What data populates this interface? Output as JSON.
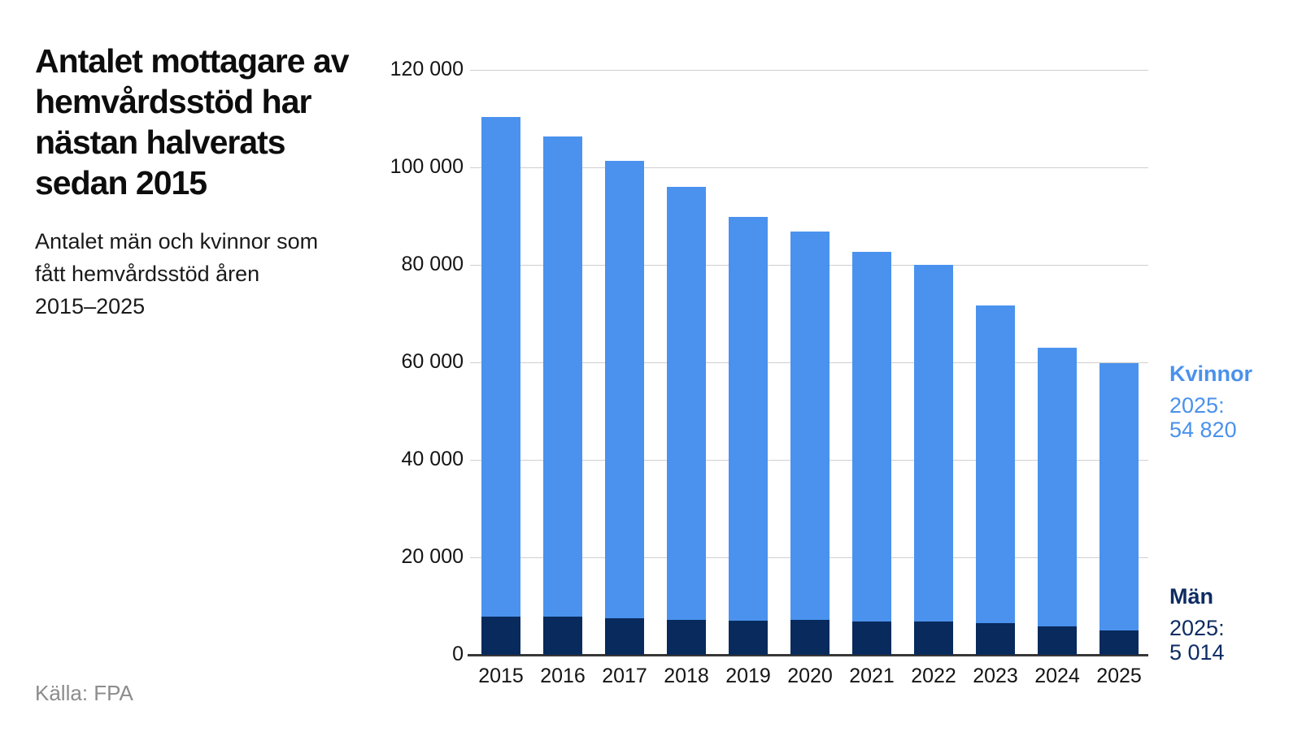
{
  "chart_data": {
    "type": "bar",
    "stacked": true,
    "title": "Antalet mottagare av\nhemvårdsstöd har\nnästan halverats\nsedan 2015",
    "subtitle": "Antalet män och kvinnor som\nfått hemvårdsstöd åren\n2015–2025",
    "source": "Källa: FPA",
    "categories": [
      "2015",
      "2016",
      "2017",
      "2018",
      "2019",
      "2020",
      "2021",
      "2022",
      "2023",
      "2024",
      "2025"
    ],
    "series": [
      {
        "name": "Män",
        "key": "man",
        "color": "#082a5c",
        "values": [
          7900,
          7900,
          7500,
          7200,
          7000,
          7100,
          6900,
          6900,
          6500,
          5800,
          5014
        ]
      },
      {
        "name": "Kvinnor",
        "key": "kvinnor",
        "color": "#4a92ee",
        "values": [
          102400,
          98500,
          93800,
          88800,
          82800,
          79700,
          75800,
          73100,
          65200,
          57200,
          54820
        ]
      }
    ],
    "ylim": [
      0,
      120000
    ],
    "ytick_step": 20000,
    "ytick_labels": [
      "0",
      "20 000",
      "40 000",
      "60 000",
      "80 000",
      "100 000",
      "120 000"
    ],
    "grid": true,
    "legend_position": "right",
    "legend_annotations": {
      "kvinnor": {
        "label": "Kvinnor",
        "detail": "2025:\n54 820",
        "color": "#4a91ec"
      },
      "man": {
        "label": "Män",
        "detail": "2025:\n5 014",
        "color": "#0d2c62"
      }
    }
  }
}
